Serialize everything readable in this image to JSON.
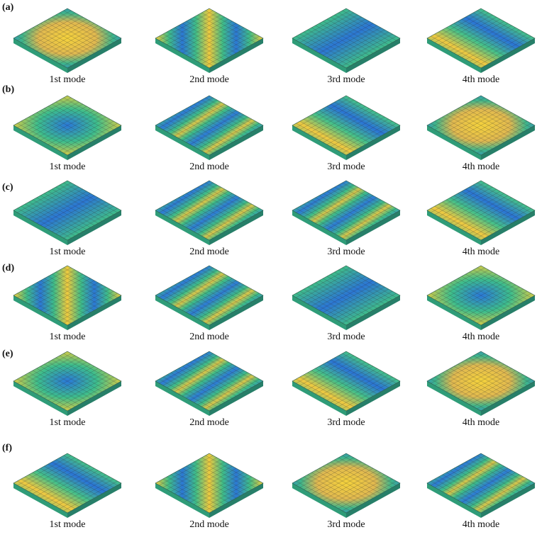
{
  "rows": [
    {
      "label": "(a)",
      "captions": [
        "1st mode",
        "2nd mode",
        "3rd mode",
        "4th mode"
      ]
    },
    {
      "label": "(b)",
      "captions": [
        "1st mode",
        "2nd mode",
        "3rd mode",
        "4th mode"
      ]
    },
    {
      "label": "(c)",
      "captions": [
        "1st mode",
        "2nd mode",
        "3rd mode",
        "4th mode"
      ]
    },
    {
      "label": "(d)",
      "captions": [
        "1st mode",
        "2nd mode",
        "3rd mode",
        "4th mode"
      ]
    },
    {
      "label": "(e)",
      "captions": [
        "1st mode",
        "2nd mode",
        "3rd mode",
        "4th mode"
      ]
    },
    {
      "label": "(f)",
      "captions": [
        "1st mode",
        "2nd mode",
        "3rd mode",
        "4th mode"
      ]
    }
  ]
}
